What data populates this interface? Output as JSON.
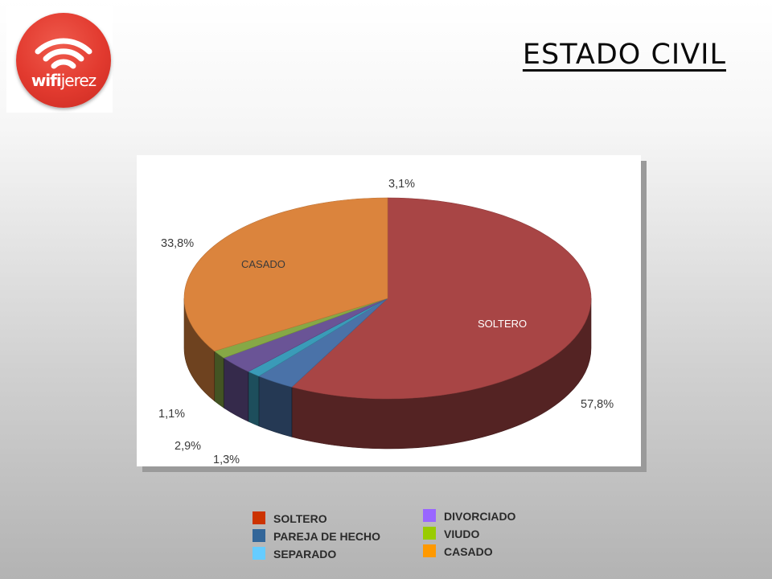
{
  "title": "ESTADO CIVIL",
  "logo": {
    "text_bold": "wifi",
    "text_light": "jerez"
  },
  "chart_data": {
    "type": "pie",
    "style": "3d",
    "legend_position": "bottom",
    "slices": [
      {
        "label": "SOLTERO",
        "value": 57.8,
        "value_label": "57,8%",
        "color": "#a84545",
        "inner_label": "SOLTERO"
      },
      {
        "label": "PAREJA DE HECHO",
        "value": 3.1,
        "value_label": "3,1%",
        "color": "#4a72a8",
        "inner_label": ""
      },
      {
        "label": "SEPARADO",
        "value": 1.1,
        "value_label": "1,1%",
        "color": "#3a9bb8",
        "inner_label": ""
      },
      {
        "label": "DIVORCIADO",
        "value": 2.9,
        "value_label": "2,9%",
        "color": "#6a5496",
        "inner_label": ""
      },
      {
        "label": "VIUDO",
        "value": 1.3,
        "value_label": "1,3%",
        "color": "#86a846",
        "inner_label": ""
      },
      {
        "label": "CASADO",
        "value": 33.8,
        "value_label": "33,8%",
        "color": "#db843d",
        "inner_label": "CASADO"
      }
    ],
    "legend": [
      {
        "label": "SOLTERO",
        "color": "#cc3300"
      },
      {
        "label": "PAREJA DE HECHO",
        "color": "#336699"
      },
      {
        "label": "SEPARADO",
        "color": "#66ccff"
      },
      {
        "label": "DIVORCIADO",
        "color": "#9966ff"
      },
      {
        "label": "VIUDO",
        "color": "#99cc00"
      },
      {
        "label": "CASADO",
        "color": "#ff9900"
      }
    ]
  }
}
